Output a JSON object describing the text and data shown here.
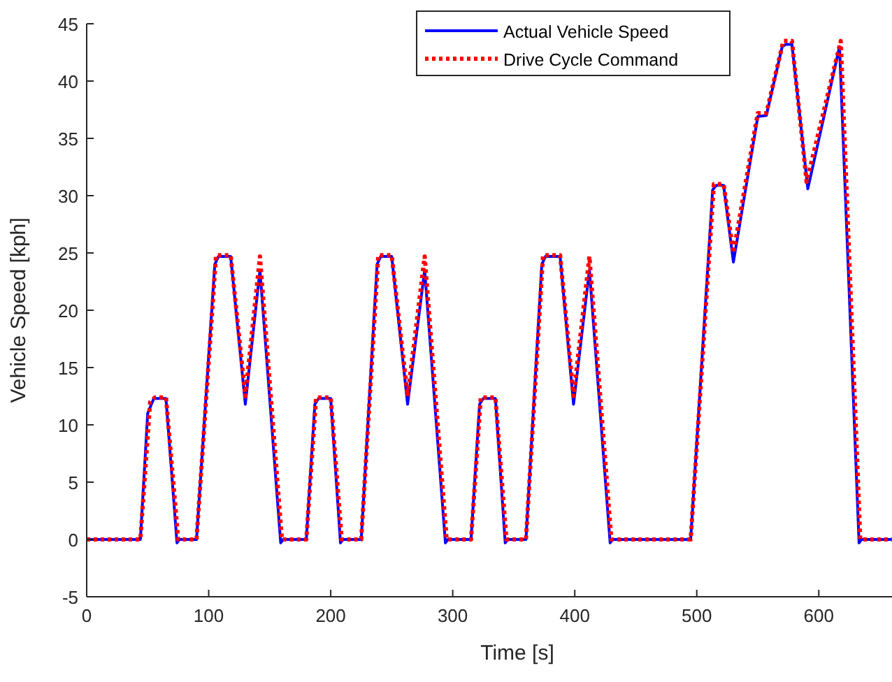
{
  "chart_data": {
    "type": "line",
    "xlabel": "Time [s]",
    "ylabel": "Vehicle Speed [kph]",
    "xlim": [
      0,
      660
    ],
    "ylim": [
      -5,
      45
    ],
    "xticks": [
      0,
      100,
      200,
      300,
      400,
      500,
      600
    ],
    "yticks": [
      -5,
      0,
      5,
      10,
      15,
      20,
      25,
      30,
      35,
      40,
      45
    ],
    "grid": false,
    "legend": "top right",
    "series": [
      {
        "name": "Actual Vehicle Speed",
        "color": "#0000ff",
        "line_style": "solid",
        "x": [
          0,
          44,
          50,
          55,
          65,
          74,
          76,
          90,
          105,
          108,
          118,
          130,
          142,
          159,
          161,
          180,
          187,
          190,
          200,
          208,
          210,
          225,
          238,
          241,
          250,
          263,
          277,
          294,
          296,
          315,
          322,
          325,
          335,
          343,
          345,
          360,
          373,
          376,
          388,
          399,
          412,
          429,
          431,
          495,
          513,
          516,
          522,
          530,
          550,
          557,
          570,
          573,
          578,
          591,
          617,
          633,
          635,
          660
        ],
        "values": [
          0,
          0,
          11,
          12.3,
          12.3,
          -0.3,
          0,
          0,
          24,
          24.7,
          24.7,
          11.8,
          23.5,
          -0.3,
          0,
          0,
          11.8,
          12.3,
          12.3,
          -0.3,
          0,
          0,
          24,
          24.7,
          24.7,
          11.8,
          23.5,
          -0.3,
          0,
          0,
          11.8,
          12.3,
          12.3,
          -0.3,
          0,
          0,
          24,
          24.7,
          24.7,
          11.8,
          23.5,
          -0.3,
          0,
          0,
          30.5,
          30.9,
          30.9,
          24.2,
          36.9,
          37,
          43,
          43.2,
          43.2,
          30.6,
          43,
          -0.3,
          0,
          0
        ]
      },
      {
        "name": "Drive Cycle Command",
        "color": "#ff0000",
        "line_style": "dotted",
        "x": [
          0,
          44,
          52,
          56,
          65,
          75,
          90,
          106,
          118,
          130,
          142,
          160,
          180,
          188,
          200,
          209,
          225,
          239,
          250,
          263,
          277,
          295,
          315,
          323,
          335,
          344,
          360,
          374,
          388,
          399,
          412,
          430,
          495,
          514,
          522,
          530,
          550,
          557,
          571,
          578,
          590,
          618,
          634,
          660
        ],
        "values": [
          0,
          0,
          12,
          12.4,
          12.4,
          0,
          0,
          24.8,
          24.8,
          12.5,
          24.7,
          0,
          0,
          12.4,
          12.4,
          0,
          0,
          24.8,
          24.8,
          12.5,
          24.7,
          0,
          0,
          12.4,
          12.4,
          0,
          0,
          24.8,
          24.8,
          12.5,
          24.7,
          0,
          0,
          31,
          31,
          25,
          37.2,
          37.2,
          43.5,
          43.5,
          31.2,
          43.5,
          0,
          0
        ]
      }
    ]
  }
}
